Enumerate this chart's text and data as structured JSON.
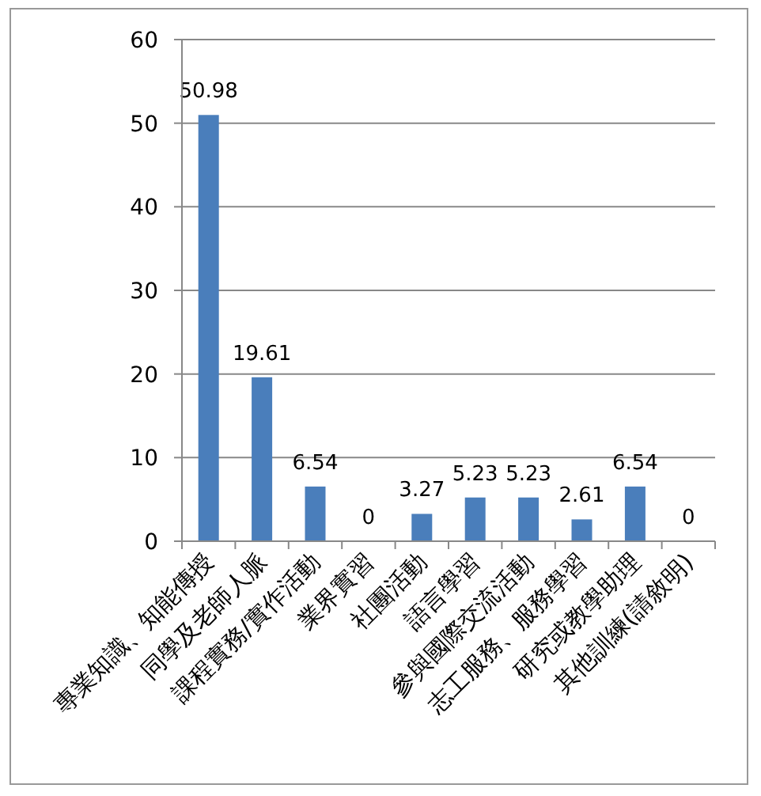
{
  "chart_data": {
    "type": "bar",
    "categories": [
      "專業知識、知能傳授",
      "同學及老師人脈",
      "課程實務/實作活動",
      "業界實習",
      "社團活動",
      "語言學習",
      "參與國際交流活動",
      "志工服務、服務學習",
      "研究或教學助理",
      "其他訓練(請敘明)"
    ],
    "values": [
      50.98,
      19.61,
      6.54,
      0,
      3.27,
      5.23,
      5.23,
      2.61,
      6.54,
      0
    ],
    "color": "#4a7ebb",
    "ylim": [
      0,
      60
    ],
    "yticks": [
      0,
      10,
      20,
      30,
      40,
      50,
      60
    ],
    "grid": "y",
    "data_labels": true
  }
}
